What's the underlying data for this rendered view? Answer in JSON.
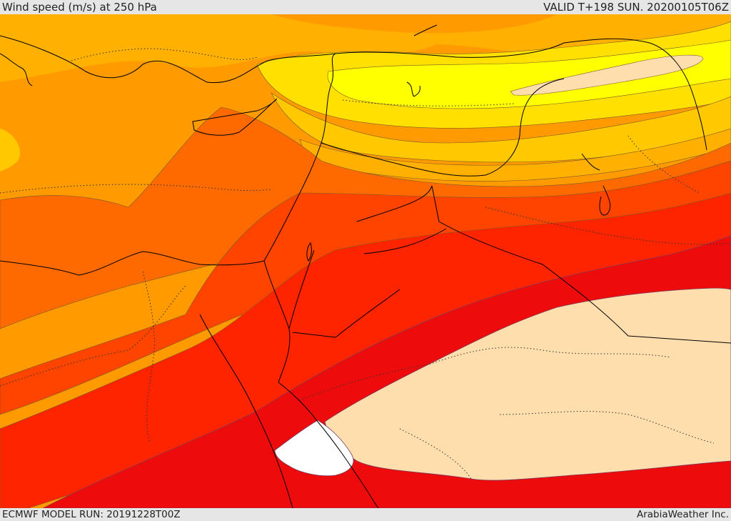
{
  "header": {
    "title": "Wind speed (m/s) at 250 hPa",
    "valid": "VALID T+198 SUN. 20200105T06Z"
  },
  "footer": {
    "model_run": "ECMWF MODEL RUN: 20191228T00Z",
    "credit": "ArabiaWeather Inc."
  },
  "map": {
    "variable": "wind speed",
    "level": "250 hPa",
    "units": "m/s",
    "colors": {
      "bg_orange": "#ff9a00",
      "light_orange": "#ffb000",
      "amber": "#ffc800",
      "yellow_band": "#ffe000",
      "yellow": "#ffff00",
      "dark_orange": "#ff6a00",
      "red_orange": "#ff4400",
      "red": "#ff2400",
      "bright_red": "#ee0b0b",
      "peach": "#ffdead",
      "white": "#ffffff"
    }
  }
}
